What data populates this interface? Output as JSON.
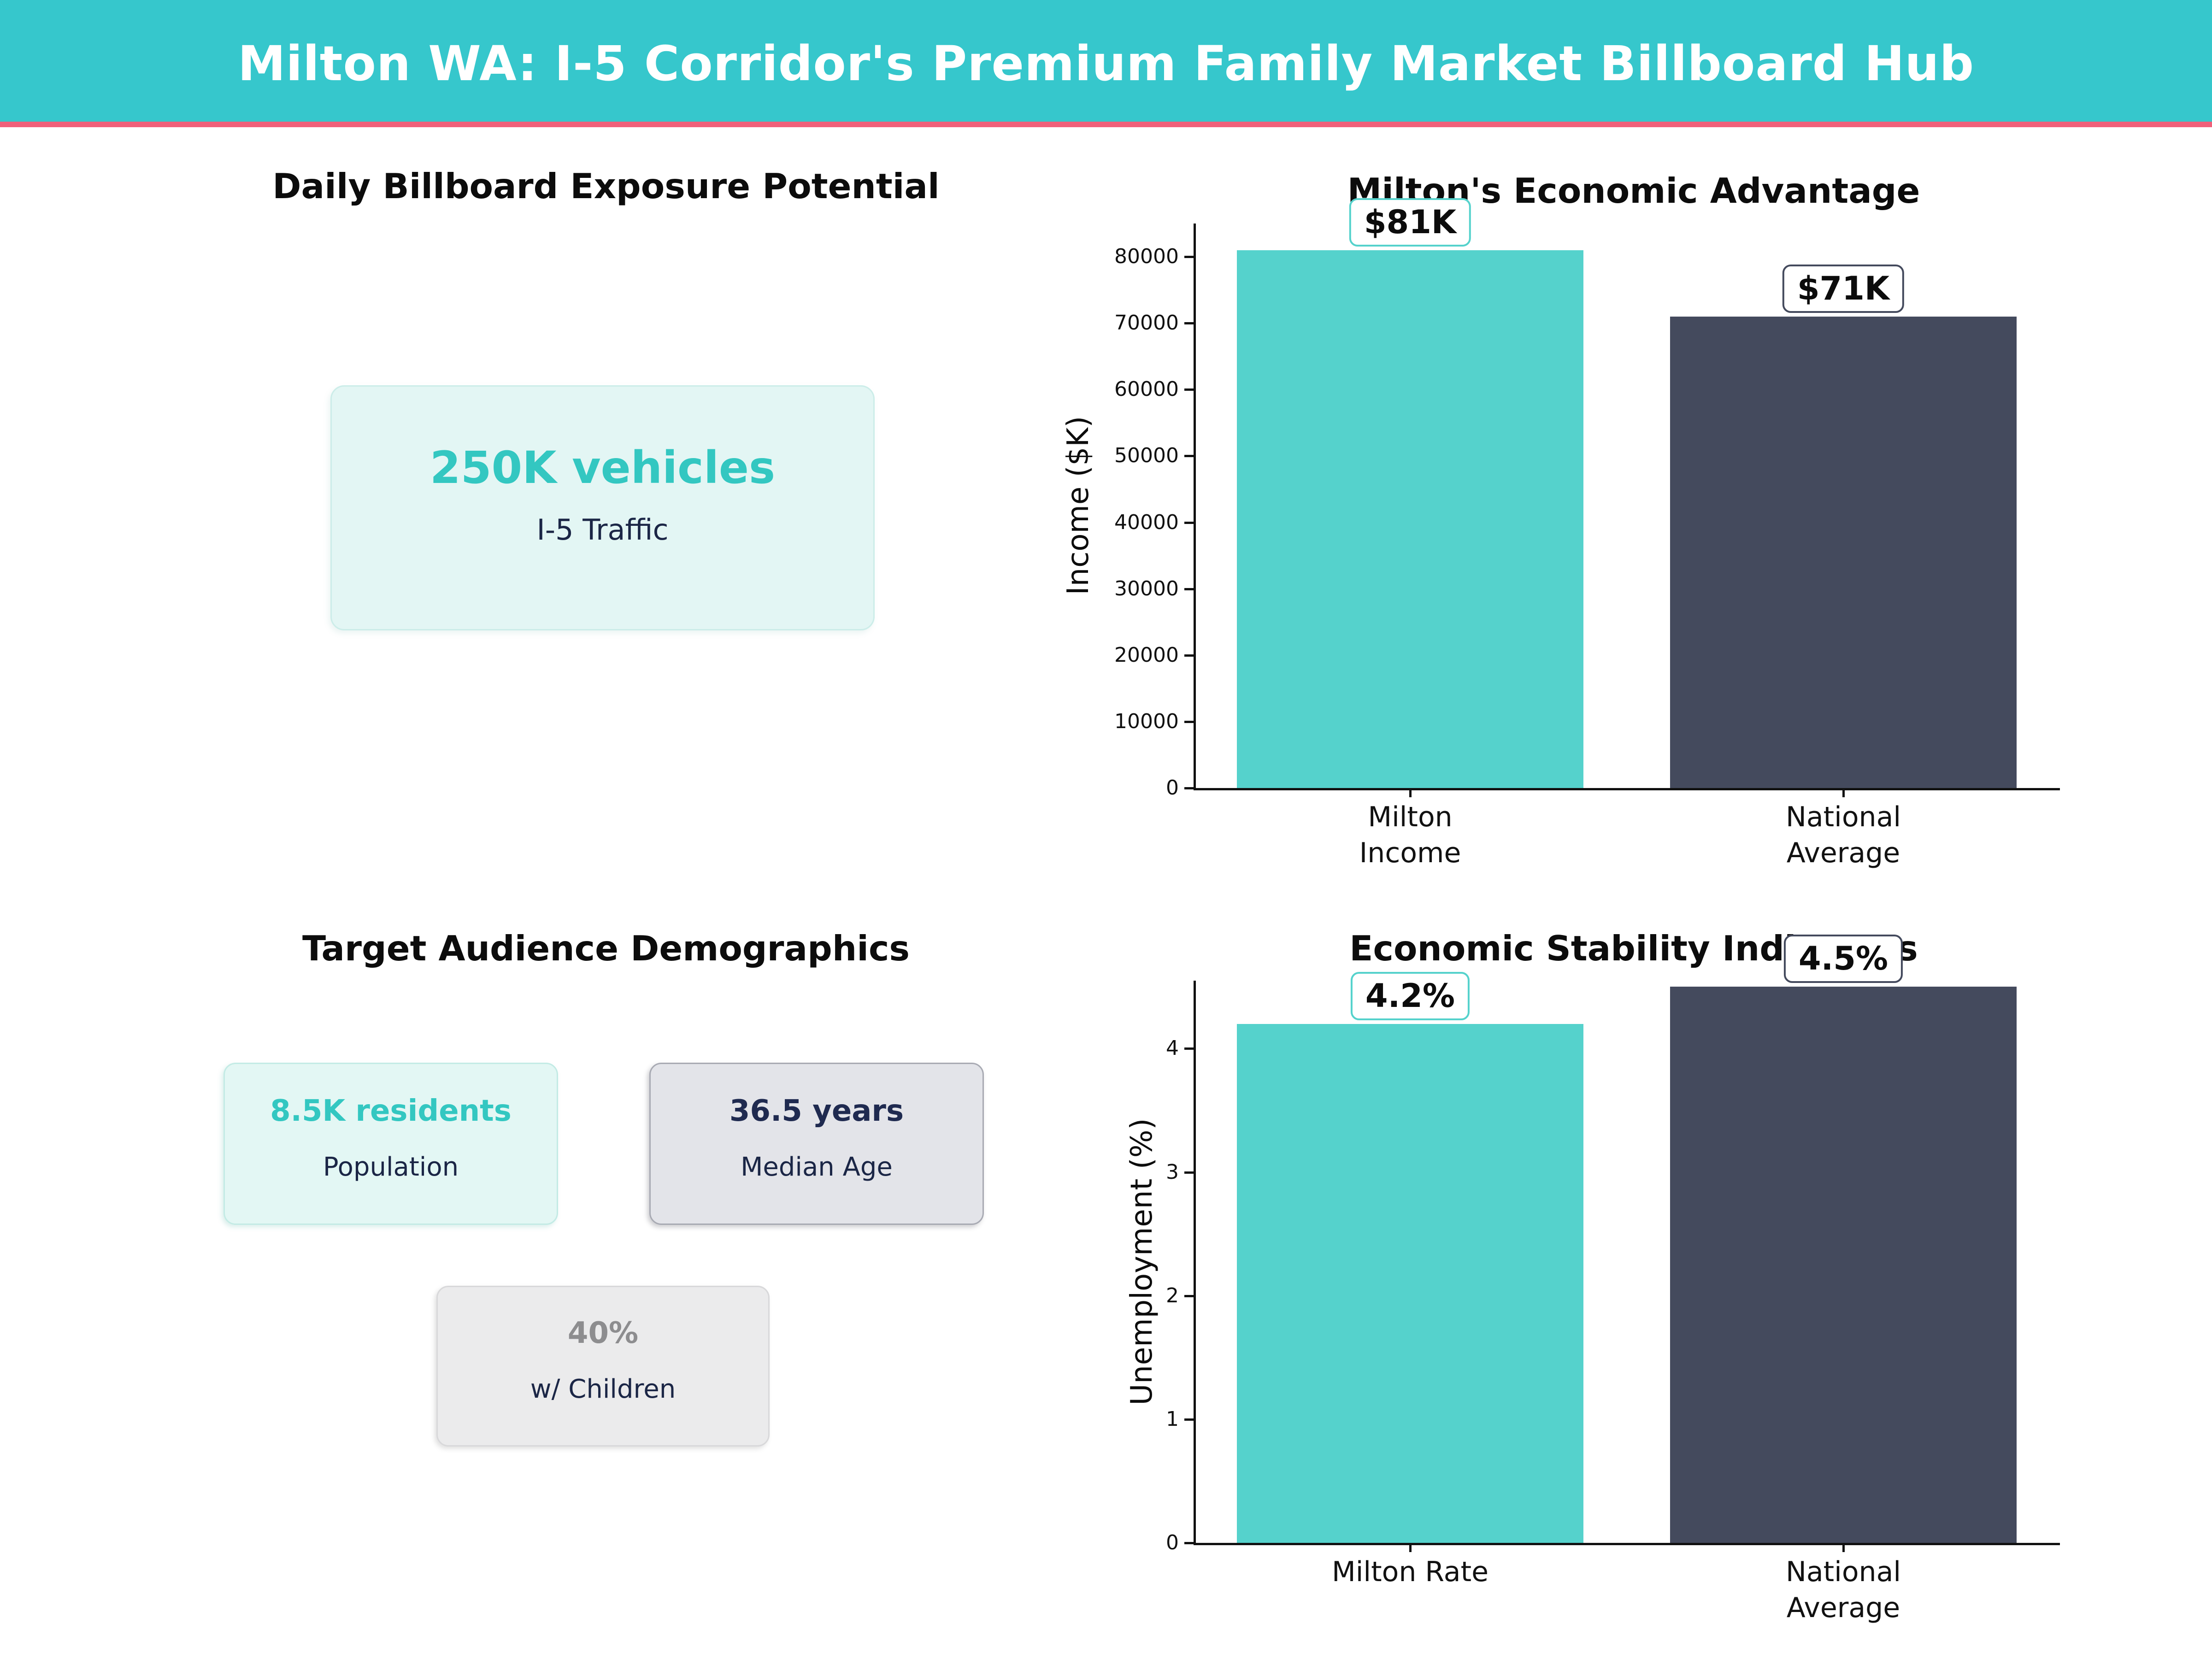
{
  "header": {
    "title": "Milton WA: I-5 Corridor's Premium Family Market Billboard Hub"
  },
  "theme": {
    "banner_bg": "#36C7CC",
    "accent_stripe": "#F0607A",
    "teal": "#55D2CC",
    "navy": "#444A5D",
    "teal_text": "#33C7C1",
    "navy_text": "#1B2646",
    "gray_text": "#8D8D8F"
  },
  "sections": {
    "exposure": {
      "title": "Daily Billboard Exposure Potential",
      "stat": {
        "value": "250K vehicles",
        "label": "I-5 Traffic"
      }
    },
    "demographics": {
      "title": "Target Audience Demographics",
      "cards": [
        {
          "value": "8.5K residents",
          "label": "Population"
        },
        {
          "value": "36.5 years",
          "label": "Median Age"
        },
        {
          "value": "40%",
          "label": "w/ Children"
        }
      ]
    }
  },
  "chart_data": [
    {
      "type": "bar",
      "title": "Milton's Economic Advantage",
      "ylabel": "Income ($K)",
      "xlabel": "",
      "categories": [
        "Milton\nIncome",
        "National\nAverage"
      ],
      "values": [
        81000,
        71000
      ],
      "bar_colors": [
        "#55D2CC",
        "#444A5D"
      ],
      "annotations": [
        "$81K",
        "$71K"
      ],
      "ylim": [
        0,
        85000
      ],
      "yticks": [
        0,
        10000,
        20000,
        30000,
        40000,
        50000,
        60000,
        70000,
        80000
      ],
      "grid": false,
      "legend": null
    },
    {
      "type": "bar",
      "title": "Economic Stability Indicators",
      "ylabel": "Unemployment (%)",
      "xlabel": "",
      "categories": [
        "Milton Rate",
        "National\nAverage"
      ],
      "values": [
        4.2,
        4.5
      ],
      "bar_colors": [
        "#55D2CC",
        "#444A5D"
      ],
      "annotations": [
        "4.2%",
        "4.5%"
      ],
      "ylim": [
        0,
        4.55
      ],
      "yticks": [
        0,
        1,
        2,
        3,
        4
      ],
      "grid": false,
      "legend": null
    }
  ]
}
